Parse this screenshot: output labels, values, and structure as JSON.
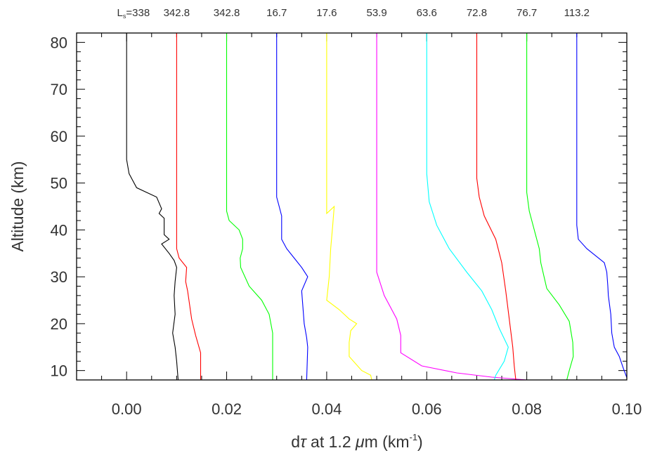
{
  "chart_data": {
    "type": "line",
    "xlabel": {
      "prefix": "d",
      "tau": "τ",
      "middle": " at 1.2 ",
      "mu": "μ",
      "unit_open": "m (km",
      "exp": "-1",
      "unit_close": ")"
    },
    "ylabel": "Altitude (km)",
    "xlim": [
      -0.01,
      0.1
    ],
    "ylim": [
      8,
      82
    ],
    "xticks": [
      "0.00",
      "0.02",
      "0.04",
      "0.06",
      "0.08",
      "0.10"
    ],
    "yticks": [
      "10",
      "20",
      "30",
      "40",
      "50",
      "60",
      "70",
      "80"
    ],
    "ls_prefix": {
      "L": "L",
      "sub": "s",
      "eq": "="
    },
    "series": [
      {
        "name": "338",
        "color": "#000000",
        "points": [
          [
            0.0,
            82
          ],
          [
            0.0,
            55
          ],
          [
            0.0005,
            52
          ],
          [
            0.002,
            49
          ],
          [
            0.006,
            47
          ],
          [
            0.007,
            44.5
          ],
          [
            0.0065,
            43.5
          ],
          [
            0.0075,
            42.5
          ],
          [
            0.0075,
            39
          ],
          [
            0.0085,
            38
          ],
          [
            0.007,
            37
          ],
          [
            0.0085,
            35
          ],
          [
            0.0095,
            33.5
          ],
          [
            0.01,
            32
          ],
          [
            0.0097,
            29
          ],
          [
            0.0095,
            26
          ],
          [
            0.0097,
            22
          ],
          [
            0.0092,
            18
          ],
          [
            0.0097,
            15
          ],
          [
            0.01,
            12
          ],
          [
            0.0103,
            8
          ]
        ]
      },
      {
        "name": "342.8",
        "color": "#ff0000",
        "points": [
          [
            0.01,
            82
          ],
          [
            0.01,
            36
          ],
          [
            0.0105,
            34
          ],
          [
            0.012,
            32
          ],
          [
            0.0118,
            29
          ],
          [
            0.0122,
            27
          ],
          [
            0.013,
            21
          ],
          [
            0.0138,
            17.5
          ],
          [
            0.0148,
            13.8
          ],
          [
            0.0148,
            8
          ]
        ]
      },
      {
        "name": "342.8",
        "color": "#00ff00",
        "points": [
          [
            0.02,
            82
          ],
          [
            0.02,
            44
          ],
          [
            0.0205,
            42
          ],
          [
            0.0225,
            40
          ],
          [
            0.0232,
            38
          ],
          [
            0.0232,
            36
          ],
          [
            0.0227,
            34
          ],
          [
            0.0228,
            32
          ],
          [
            0.0245,
            28
          ],
          [
            0.027,
            25
          ],
          [
            0.0285,
            22
          ],
          [
            0.0292,
            18
          ],
          [
            0.0292,
            8
          ]
        ]
      },
      {
        "name": "16.7",
        "color": "#0000ff",
        "points": [
          [
            0.03,
            82
          ],
          [
            0.03,
            47
          ],
          [
            0.0305,
            45
          ],
          [
            0.031,
            43
          ],
          [
            0.031,
            40
          ],
          [
            0.031,
            38
          ],
          [
            0.032,
            36
          ],
          [
            0.0335,
            34
          ],
          [
            0.035,
            32
          ],
          [
            0.0362,
            30
          ],
          [
            0.035,
            27
          ],
          [
            0.0355,
            20
          ],
          [
            0.036,
            17
          ],
          [
            0.0362,
            15
          ],
          [
            0.036,
            8
          ]
        ]
      },
      {
        "name": "17.6",
        "color": "#ffff00",
        "points": [
          [
            0.04,
            82
          ],
          [
            0.04,
            43.5
          ],
          [
            0.0415,
            45
          ],
          [
            0.0412,
            41
          ],
          [
            0.0408,
            36
          ],
          [
            0.0405,
            30
          ],
          [
            0.04,
            25
          ],
          [
            0.0425,
            23
          ],
          [
            0.0445,
            21
          ],
          [
            0.046,
            20
          ],
          [
            0.0448,
            18.5
          ],
          [
            0.0445,
            16
          ],
          [
            0.0445,
            13
          ],
          [
            0.047,
            10
          ],
          [
            0.0488,
            9
          ],
          [
            0.049,
            8
          ]
        ]
      },
      {
        "name": "53.9",
        "color": "#ff00ff",
        "points": [
          [
            0.05,
            82
          ],
          [
            0.05,
            31
          ],
          [
            0.0515,
            26
          ],
          [
            0.054,
            21
          ],
          [
            0.0548,
            17.5
          ],
          [
            0.0548,
            13.8
          ],
          [
            0.059,
            11
          ],
          [
            0.066,
            9.5
          ],
          [
            0.073,
            8.6
          ],
          [
            0.08,
            8
          ]
        ]
      },
      {
        "name": "63.6",
        "color": "#00ffff",
        "points": [
          [
            0.06,
            82
          ],
          [
            0.06,
            52
          ],
          [
            0.0605,
            46
          ],
          [
            0.062,
            41
          ],
          [
            0.0645,
            36
          ],
          [
            0.068,
            31
          ],
          [
            0.071,
            27
          ],
          [
            0.073,
            23
          ],
          [
            0.0745,
            19
          ],
          [
            0.0763,
            15
          ],
          [
            0.0755,
            12
          ],
          [
            0.0738,
            9
          ],
          [
            0.0735,
            8
          ]
        ]
      },
      {
        "name": "72.8",
        "color": "#ff0000",
        "points": [
          [
            0.07,
            82
          ],
          [
            0.07,
            51
          ],
          [
            0.0705,
            47
          ],
          [
            0.0715,
            43
          ],
          [
            0.0738,
            38
          ],
          [
            0.075,
            33
          ],
          [
            0.0758,
            27
          ],
          [
            0.0765,
            21
          ],
          [
            0.0772,
            15
          ],
          [
            0.0775,
            11
          ],
          [
            0.0778,
            8
          ]
        ]
      },
      {
        "name": "76.7",
        "color": "#00ff00",
        "points": [
          [
            0.08,
            82
          ],
          [
            0.08,
            48
          ],
          [
            0.0805,
            44
          ],
          [
            0.0815,
            40
          ],
          [
            0.0825,
            36
          ],
          [
            0.0828,
            33
          ],
          [
            0.084,
            27.5
          ],
          [
            0.0865,
            24
          ],
          [
            0.0885,
            20.5
          ],
          [
            0.0892,
            16
          ],
          [
            0.0893,
            13
          ],
          [
            0.0885,
            10
          ],
          [
            0.088,
            8
          ]
        ]
      },
      {
        "name": "113.2",
        "color": "#0000ff",
        "points": [
          [
            0.09,
            82
          ],
          [
            0.09,
            41
          ],
          [
            0.0903,
            38
          ],
          [
            0.092,
            36
          ],
          [
            0.0955,
            33
          ],
          [
            0.096,
            31
          ],
          [
            0.0962,
            28
          ],
          [
            0.0963,
            26
          ],
          [
            0.0968,
            22
          ],
          [
            0.097,
            18
          ],
          [
            0.0975,
            15
          ],
          [
            0.0985,
            13
          ],
          [
            0.0993,
            10.5
          ],
          [
            0.1,
            8.5
          ]
        ]
      }
    ]
  }
}
